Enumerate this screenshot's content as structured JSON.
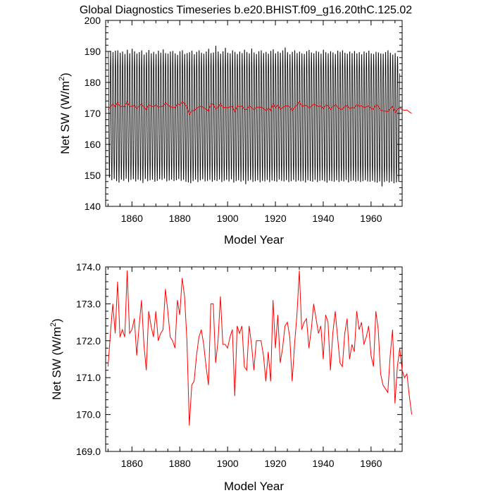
{
  "title": "Global Diagnostics Timeseries b.e20.BHIST.f09_g16.20thC.125.02",
  "chart_data": [
    {
      "type": "line",
      "ylabel": "Net SW (W/m",
      "ylabel_sup": "2",
      "ylabel_tail": ")",
      "xlabel": "Model Year",
      "xlim": [
        1849,
        1973
      ],
      "ylim": [
        140,
        200
      ],
      "xticks": [
        1860,
        1880,
        1900,
        1920,
        1940,
        1960
      ],
      "xtick_labels": [
        "1860",
        "1880",
        "1900",
        "1920",
        "1940",
        "1960"
      ],
      "yticks": [
        140,
        150,
        160,
        170,
        180,
        190,
        200
      ],
      "ytick_labels": [
        "140",
        "150",
        "160",
        "170",
        "180",
        "190",
        "200"
      ],
      "grid": false,
      "legend": "none",
      "series": [
        {
          "kind": "monthly",
          "color": "#000000",
          "x_start": 1850,
          "annual_max": [
            190.5,
            190.8,
            190.4,
            190.9,
            191.0,
            190.2,
            190.6,
            189.8,
            191.2,
            190.0,
            191.5,
            190.7,
            189.9,
            190.4,
            191.0,
            189.6,
            190.3,
            191.1,
            190.0,
            190.5,
            189.8,
            190.9,
            190.2,
            191.3,
            190.1,
            189.9,
            190.6,
            190.8,
            190.0,
            189.5,
            190.7,
            191.0,
            189.8,
            190.1,
            190.4,
            190.9,
            189.7,
            190.5,
            191.0,
            190.2,
            189.9,
            190.6,
            191.5,
            190.1,
            190.3,
            192.5,
            190.6,
            189.9,
            190.7,
            191.8,
            190.2,
            190.0,
            191.0,
            190.5,
            189.8,
            190.6,
            190.1,
            191.2,
            190.4,
            190.0,
            191.6,
            190.3,
            189.8,
            190.7,
            191.0,
            190.1,
            190.5,
            189.9,
            190.8,
            191.3,
            190.0,
            190.6,
            190.2,
            191.0,
            191.9,
            190.4,
            189.7,
            190.5,
            191.0,
            190.1,
            190.6,
            190.0,
            189.8,
            190.7,
            191.1,
            190.3,
            190.0,
            190.8,
            190.5,
            189.9,
            191.2,
            190.4,
            190.0,
            190.7,
            190.3,
            189.8,
            190.9,
            190.5,
            191.0,
            190.2,
            189.9,
            190.6,
            190.1,
            190.8,
            190.0,
            190.4,
            189.7,
            190.6,
            190.2,
            190.9,
            190.0,
            189.8,
            190.5,
            190.3,
            190.0,
            189.9,
            190.4,
            191.0,
            190.2,
            189.6,
            190.1,
            189.0
          ],
          "annual_min": [
            148.6,
            147.8,
            148.2,
            147.5,
            147.0,
            148.0,
            147.6,
            148.3,
            147.2,
            147.9,
            148.1,
            147.4,
            148.0,
            147.7,
            146.9,
            148.2,
            147.5,
            147.8,
            148.0,
            147.3,
            147.6,
            148.1,
            147.9,
            148.3,
            147.4,
            147.7,
            148.0,
            147.5,
            147.8,
            148.2,
            147.6,
            147.9,
            147.3,
            147.1,
            146.8,
            147.5,
            148.0,
            147.2,
            147.7,
            148.1,
            147.4,
            147.6,
            147.9,
            147.3,
            147.8,
            147.5,
            148.0,
            147.2,
            147.6,
            147.9,
            147.4,
            148.1,
            147.0,
            147.5,
            147.8,
            147.3,
            147.7,
            146.5,
            147.6,
            147.9,
            147.2,
            147.5,
            147.8,
            147.1,
            147.6,
            147.4,
            147.9,
            147.2,
            147.7,
            147.5,
            147.3,
            148.0,
            147.6,
            147.4,
            147.8,
            147.2,
            147.5,
            147.9,
            147.3,
            147.7,
            147.4,
            147.6,
            147.1,
            147.8,
            147.5,
            147.3,
            147.9,
            147.2,
            147.6,
            147.8,
            147.4,
            147.0,
            147.7,
            147.5,
            147.3,
            147.8,
            147.2,
            147.6,
            147.4,
            147.9,
            147.1,
            147.5,
            147.7,
            147.3,
            147.6,
            147.2,
            147.5,
            147.8,
            147.4,
            147.3,
            147.6,
            147.2,
            147.0,
            147.4,
            145.8,
            147.2,
            147.5,
            147.0,
            147.4,
            146.8,
            147.1,
            147.3
          ]
        },
        {
          "kind": "annual",
          "color": "#ff0000",
          "x_start": 1850,
          "values": [
            171.3,
            172.2,
            173.0,
            172.2,
            173.6,
            172.1,
            172.3,
            172.1,
            173.9,
            172.2,
            172.3,
            172.6,
            171.6,
            172.4,
            173.1,
            171.9,
            171.2,
            172.8,
            172.4,
            172.1,
            172.8,
            172.0,
            172.2,
            172.3,
            173.4,
            172.8,
            172.1,
            172.0,
            171.8,
            173.1,
            172.7,
            173.7,
            173.2,
            172.0,
            169.7,
            170.8,
            170.9,
            171.6,
            172.1,
            172.3,
            171.9,
            171.3,
            170.8,
            173.0,
            173.0,
            171.4,
            172.0,
            173.2,
            171.9,
            171.9,
            171.8,
            172.1,
            172.3,
            170.5,
            172.4,
            172.2,
            172.4,
            171.3,
            171.2,
            172.4,
            171.9,
            171.2,
            172.0,
            172.0,
            172.0,
            171.6,
            170.9,
            171.7,
            170.9,
            173.1,
            171.8,
            172.7,
            171.4,
            171.8,
            172.4,
            172.5,
            172.1,
            170.9,
            171.9,
            172.7,
            173.9,
            172.3,
            172.5,
            172.6,
            171.8,
            172.3,
            173.0,
            172.6,
            172.2,
            172.4,
            171.5,
            172.7,
            172.5,
            171.2,
            172.2,
            172.8,
            172.1,
            171.4,
            171.3,
            172.2,
            172.6,
            171.5,
            171.9,
            171.7,
            172.8,
            172.3,
            172.5,
            171.9,
            172.1,
            172.4,
            171.6,
            171.3,
            172.8,
            172.3,
            171.1,
            170.8,
            170.7,
            170.6,
            171.6,
            172.3,
            170.3,
            171.3,
            171.8,
            171.2,
            171.0,
            171.1,
            170.5,
            170.0
          ]
        }
      ]
    },
    {
      "type": "line",
      "ylabel": "Net SW (W/m",
      "ylabel_sup": "2",
      "ylabel_tail": ")",
      "xlabel": "Model Year",
      "xlim": [
        1849,
        1973
      ],
      "ylim": [
        169.0,
        174.0
      ],
      "xticks": [
        1860,
        1880,
        1900,
        1920,
        1940,
        1960
      ],
      "xtick_labels": [
        "1860",
        "1880",
        "1900",
        "1920",
        "1940",
        "1960"
      ],
      "yticks": [
        169,
        170,
        171,
        172,
        173,
        174
      ],
      "ytick_labels": [
        "169.0",
        "170.0",
        "171.0",
        "172.0",
        "173.0",
        "174.0"
      ],
      "grid": false,
      "legend": "none",
      "series": [
        {
          "kind": "annual",
          "color": "#ff0000",
          "x_start": 1850,
          "values": [
            171.3,
            172.2,
            173.0,
            172.2,
            173.6,
            172.1,
            172.3,
            172.1,
            173.9,
            172.2,
            172.3,
            172.6,
            171.6,
            172.4,
            173.1,
            171.9,
            171.2,
            172.8,
            172.4,
            172.1,
            172.8,
            172.0,
            172.2,
            172.3,
            173.4,
            172.8,
            172.1,
            172.0,
            171.8,
            173.1,
            172.7,
            173.7,
            173.2,
            172.0,
            169.7,
            170.8,
            170.9,
            171.6,
            172.1,
            172.3,
            171.9,
            171.3,
            170.8,
            173.0,
            173.0,
            171.4,
            172.0,
            173.2,
            171.9,
            171.9,
            171.8,
            172.1,
            172.3,
            170.5,
            172.4,
            172.2,
            172.4,
            171.3,
            171.2,
            172.4,
            171.9,
            171.2,
            172.0,
            172.0,
            172.0,
            171.6,
            170.9,
            171.7,
            170.9,
            173.1,
            171.8,
            172.7,
            171.4,
            171.8,
            172.4,
            172.5,
            172.1,
            170.9,
            171.9,
            172.7,
            173.9,
            172.3,
            172.5,
            172.6,
            171.8,
            172.3,
            173.0,
            172.6,
            172.2,
            172.4,
            171.5,
            172.7,
            172.5,
            171.2,
            172.2,
            172.8,
            172.1,
            171.4,
            171.3,
            172.2,
            172.6,
            171.5,
            171.9,
            171.7,
            172.8,
            172.3,
            172.5,
            171.9,
            172.1,
            172.4,
            171.6,
            171.3,
            172.8,
            172.3,
            171.1,
            170.8,
            170.7,
            170.6,
            171.6,
            172.3,
            170.3,
            171.3,
            171.8,
            171.2,
            171.0,
            171.1,
            170.5,
            170.0
          ]
        }
      ]
    }
  ]
}
